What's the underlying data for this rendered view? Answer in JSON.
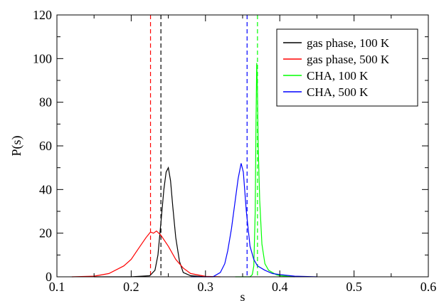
{
  "chart_data": {
    "type": "line",
    "xlabel": "s",
    "ylabel": "P(s)",
    "xlim": [
      0.1,
      0.6
    ],
    "ylim": [
      0,
      120
    ],
    "x_ticks": [
      0.1,
      0.2,
      0.3,
      0.4,
      0.5,
      0.6
    ],
    "x_tick_labels": [
      "0.1",
      "0.2",
      "0.3",
      "0.4",
      "0.5",
      "0.6"
    ],
    "y_ticks": [
      0,
      20,
      40,
      60,
      80,
      100,
      120
    ],
    "y_tick_labels": [
      "0",
      "20",
      "40",
      "60",
      "80",
      "100",
      "120"
    ],
    "grid": false,
    "legend_position": "top-right",
    "series": [
      {
        "name": "gas phase, 100 K",
        "color": "#000000",
        "mean_line": 0.24,
        "points": [
          [
            0.15,
            0
          ],
          [
            0.2,
            0
          ],
          [
            0.225,
            0.5
          ],
          [
            0.232,
            3
          ],
          [
            0.236,
            10
          ],
          [
            0.24,
            25
          ],
          [
            0.244,
            40
          ],
          [
            0.247,
            48
          ],
          [
            0.25,
            50
          ],
          [
            0.253,
            44
          ],
          [
            0.256,
            32
          ],
          [
            0.26,
            18
          ],
          [
            0.265,
            7
          ],
          [
            0.27,
            2
          ],
          [
            0.28,
            0.5
          ],
          [
            0.3,
            0
          ]
        ]
      },
      {
        "name": "gas phase, 500 K",
        "color": "#ff0000",
        "mean_line": 0.226,
        "points": [
          [
            0.12,
            0
          ],
          [
            0.15,
            0.3
          ],
          [
            0.17,
            1.5
          ],
          [
            0.19,
            5
          ],
          [
            0.2,
            8
          ],
          [
            0.21,
            13
          ],
          [
            0.22,
            18
          ],
          [
            0.226,
            20.5
          ],
          [
            0.23,
            20
          ],
          [
            0.234,
            21
          ],
          [
            0.24,
            19
          ],
          [
            0.25,
            14
          ],
          [
            0.26,
            8
          ],
          [
            0.27,
            4
          ],
          [
            0.28,
            1.5
          ],
          [
            0.3,
            0.2
          ],
          [
            0.32,
            0
          ]
        ]
      },
      {
        "name": "CHA, 100 K",
        "color": "#00ff00",
        "mean_line": 0.37,
        "points": [
          [
            0.34,
            0
          ],
          [
            0.36,
            0
          ],
          [
            0.363,
            1
          ],
          [
            0.365,
            5
          ],
          [
            0.367,
            30
          ],
          [
            0.368,
            70
          ],
          [
            0.369,
            98
          ],
          [
            0.37,
            85
          ],
          [
            0.371,
            60
          ],
          [
            0.373,
            35
          ],
          [
            0.376,
            15
          ],
          [
            0.38,
            6
          ],
          [
            0.385,
            3
          ],
          [
            0.39,
            2
          ],
          [
            0.395,
            1
          ],
          [
            0.4,
            0.5
          ],
          [
            0.42,
            0
          ]
        ]
      },
      {
        "name": "CHA, 500 K",
        "color": "#0000ff",
        "mean_line": 0.356,
        "points": [
          [
            0.28,
            0
          ],
          [
            0.31,
            0
          ],
          [
            0.32,
            2
          ],
          [
            0.326,
            6
          ],
          [
            0.33,
            12
          ],
          [
            0.335,
            22
          ],
          [
            0.34,
            35
          ],
          [
            0.344,
            45
          ],
          [
            0.348,
            52
          ],
          [
            0.351,
            48
          ],
          [
            0.355,
            30
          ],
          [
            0.36,
            14
          ],
          [
            0.365,
            8
          ],
          [
            0.37,
            5
          ],
          [
            0.38,
            3
          ],
          [
            0.39,
            1.5
          ],
          [
            0.4,
            1
          ],
          [
            0.42,
            0.3
          ],
          [
            0.45,
            0
          ]
        ]
      }
    ]
  }
}
